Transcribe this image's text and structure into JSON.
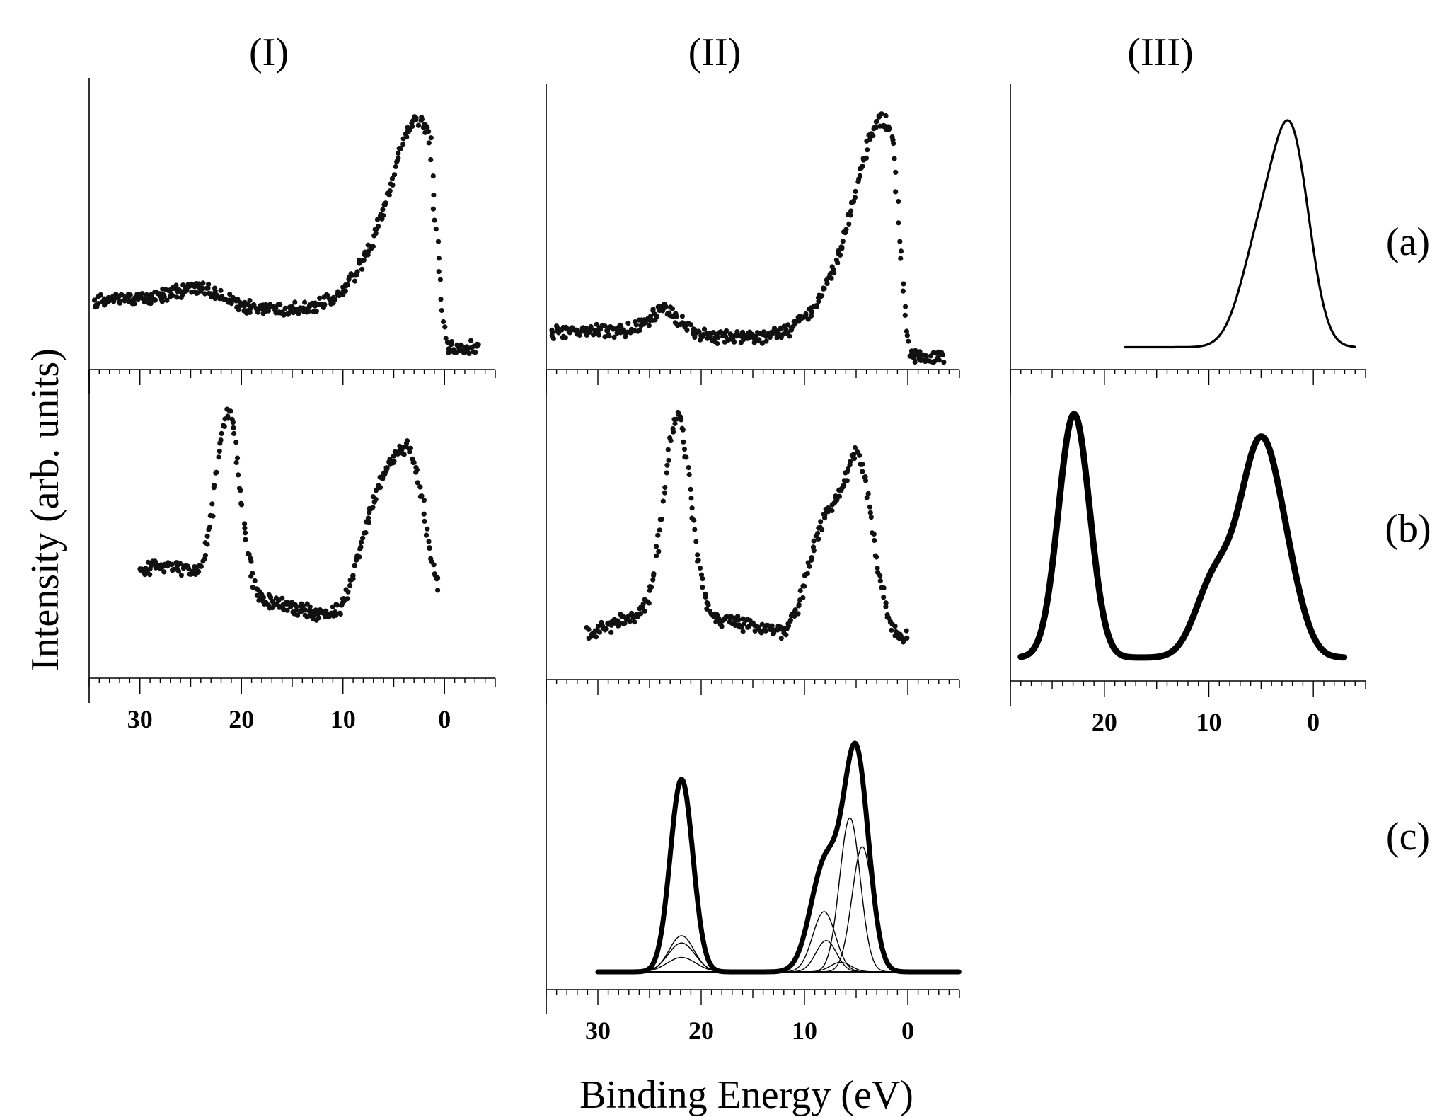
{
  "figure": {
    "ylabel": "Intensity (arb. units)",
    "xlabel": "Binding Energy (eV)",
    "column_titles": [
      "(I)",
      "(II)",
      "(III)"
    ],
    "row_labels": [
      "(a)",
      "(b)",
      "(c)"
    ]
  },
  "chart_data": [
    {
      "id": "I-a",
      "type": "scatter",
      "column": "(I)",
      "row": "(a)",
      "xlim": [
        35,
        -5
      ],
      "x_ticks": [],
      "series": [
        {
          "peaks": [
            [
              2.3,
              0.64,
              2.4
            ],
            [
              5.5,
              0.22,
              3.2
            ],
            [
              24.0,
              0.07,
              2.2
            ],
            [
              30.0,
              0.045,
              4.0
            ]
          ],
          "baseline": 0.23,
          "x_range": [
            34.5,
            -3.5
          ],
          "edge": 1.2
        }
      ]
    },
    {
      "id": "I-b",
      "type": "scatter",
      "column": "(I)",
      "row": "(b)",
      "xlim": [
        35,
        -5
      ],
      "x_ticks": [
        "30",
        "20",
        "10",
        "0"
      ],
      "x_tick_values": [
        30,
        20,
        10,
        0
      ],
      "series": [
        {
          "peaks": [
            [
              21.3,
              0.65,
              1.2
            ],
            [
              25.0,
              0.12,
              4.0
            ],
            [
              3.3,
              0.52,
              1.6
            ],
            [
              6.5,
              0.42,
              1.8
            ],
            [
              30.0,
              0.12,
              4.0
            ],
            [
              16.0,
              0.05,
              3.0
            ]
          ],
          "baseline": 0.18,
          "x_range": [
            30.0,
            0.5
          ],
          "edge": 0
        }
      ]
    },
    {
      "id": "II-a",
      "type": "scatter",
      "column": "(II)",
      "row": "(a)",
      "xlim": [
        35,
        -5
      ],
      "x_ticks": [],
      "series": [
        {
          "peaks": [
            [
              2.2,
              0.68,
              2.4
            ],
            [
              5.5,
              0.2,
              3.0
            ],
            [
              23.5,
              0.09,
              1.6
            ],
            [
              30.0,
              0.03,
              4.0
            ]
          ],
          "baseline": 0.1,
          "x_range": [
            34.5,
            -3.5
          ],
          "edge": 1.0
        }
      ]
    },
    {
      "id": "II-b",
      "type": "scatter",
      "column": "(II)",
      "row": "(b)",
      "xlim": [
        35,
        -5
      ],
      "x_ticks": [],
      "series": [
        {
          "peaks": [
            [
              22.3,
              0.72,
              1.3
            ],
            [
              25.0,
              0.08,
              3.5
            ],
            [
              4.7,
              0.6,
              1.4
            ],
            [
              8.0,
              0.4,
              1.6
            ],
            [
              17.0,
              0.05,
              3.0
            ]
          ],
          "baseline": 0.12,
          "x_range": [
            31.0,
            0.0
          ],
          "edge": 0
        }
      ]
    },
    {
      "id": "II-c",
      "type": "line",
      "column": "(II)",
      "row": "(c)",
      "xlim": [
        35,
        -5
      ],
      "x_ticks": [
        "30",
        "20",
        "10",
        "0"
      ],
      "x_tick_values": [
        30,
        20,
        10,
        0
      ],
      "series": [
        {
          "role": "sum",
          "peaks": [
            [
              21.9,
              0.8,
              1.1
            ],
            [
              5.0,
              0.9,
              1.2
            ],
            [
              8.0,
              0.45,
              1.4
            ]
          ],
          "baseline": 0.05,
          "x_range": [
            30.0,
            -5.0
          ]
        },
        {
          "role": "component",
          "peaks": [
            [
              21.9,
              0.15,
              1.2
            ]
          ],
          "baseline": 0.05,
          "x_range": [
            30.0,
            -5.0
          ]
        },
        {
          "role": "component",
          "peaks": [
            [
              21.9,
              0.12,
              1.3
            ]
          ],
          "baseline": 0.05,
          "x_range": [
            30.0,
            -5.0
          ]
        },
        {
          "role": "component",
          "peaks": [
            [
              21.9,
              0.06,
              1.4
            ]
          ],
          "baseline": 0.05,
          "x_range": [
            30.0,
            -5.0
          ]
        },
        {
          "role": "component",
          "peaks": [
            [
              5.6,
              0.64,
              1.0
            ]
          ],
          "baseline": 0.05,
          "x_range": [
            30.0,
            -5.0
          ]
        },
        {
          "role": "component",
          "peaks": [
            [
              4.4,
              0.52,
              1.0
            ]
          ],
          "baseline": 0.05,
          "x_range": [
            30.0,
            -5.0
          ]
        },
        {
          "role": "component",
          "peaks": [
            [
              8.1,
              0.25,
              1.1
            ]
          ],
          "baseline": 0.05,
          "x_range": [
            30.0,
            -5.0
          ]
        },
        {
          "role": "component",
          "peaks": [
            [
              7.9,
              0.13,
              1.0
            ]
          ],
          "baseline": 0.05,
          "x_range": [
            30.0,
            -5.0
          ]
        },
        {
          "role": "component",
          "peaks": [
            [
              6.5,
              0.04,
              1.0
            ]
          ],
          "baseline": 0.05,
          "x_range": [
            30.0,
            -5.0
          ]
        }
      ]
    },
    {
      "id": "III-a",
      "type": "line",
      "column": "(III)",
      "row": "(a)",
      "xlim": [
        29,
        -5
      ],
      "x_ticks": [],
      "series": [
        {
          "role": "thin",
          "peaks": [
            [
              2.0,
              0.55,
              1.7
            ],
            [
              5.0,
              0.3,
              1.9
            ]
          ],
          "baseline": 0.05,
          "x_range": [
            18.0,
            -4.0
          ]
        }
      ]
    },
    {
      "id": "III-b",
      "type": "line",
      "column": "(III)",
      "row": "(b)",
      "xlim": [
        29,
        -5
      ],
      "x_ticks": [
        "20",
        "10",
        "0"
      ],
      "x_tick_values": [
        20,
        10,
        0
      ],
      "series": [
        {
          "role": "thick",
          "peaks": [
            [
              22.9,
              0.82,
              1.5
            ],
            [
              5.0,
              0.72,
              2.0
            ],
            [
              9.5,
              0.25,
              1.8
            ],
            [
              2.0,
              0.1,
              1.5
            ]
          ],
          "baseline": 0.05,
          "x_range": [
            28.0,
            -3.0
          ]
        }
      ]
    }
  ]
}
